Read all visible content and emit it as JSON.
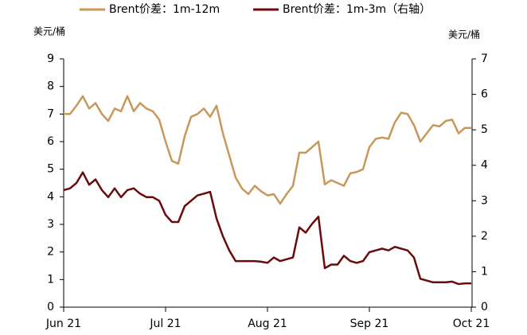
{
  "chart_data": {
    "type": "line",
    "y_label": "美元/桶",
    "y2_label": "美元/桶",
    "categories": [
      "Jun 21",
      null,
      null,
      null,
      null,
      null,
      null,
      null,
      null,
      null,
      null,
      null,
      null,
      null,
      null,
      null,
      "Jul 21",
      null,
      null,
      null,
      null,
      null,
      null,
      null,
      null,
      null,
      null,
      null,
      null,
      null,
      null,
      null,
      "Aug 21",
      null,
      null,
      null,
      null,
      null,
      null,
      null,
      null,
      null,
      null,
      null,
      null,
      null,
      null,
      null,
      "Sep 21",
      null,
      null,
      null,
      null,
      null,
      null,
      null,
      null,
      null,
      null,
      null,
      null,
      null,
      null,
      null,
      "Oct 21"
    ],
    "series": [
      {
        "name": "Brent价差：1m-12m",
        "color": "#c8975a",
        "axis": "y",
        "values": [
          7.0,
          7.0,
          7.3,
          7.65,
          7.2,
          7.4,
          7.0,
          6.75,
          7.2,
          7.1,
          7.65,
          7.1,
          7.4,
          7.2,
          7.1,
          6.8,
          6.0,
          5.3,
          5.2,
          6.2,
          6.9,
          7.0,
          7.2,
          6.9,
          7.3,
          6.3,
          5.5,
          4.7,
          4.3,
          4.1,
          4.4,
          4.2,
          4.05,
          4.1,
          3.75,
          4.1,
          4.4,
          5.6,
          5.6,
          5.8,
          6.0,
          4.45,
          4.6,
          4.5,
          4.4,
          4.85,
          4.9,
          5.0,
          5.8,
          6.1,
          6.15,
          6.1,
          6.7,
          7.05,
          7.0,
          6.6,
          6.0,
          6.3,
          6.6,
          6.55,
          6.75,
          6.8,
          6.3,
          6.5,
          6.5
        ]
      },
      {
        "name": "Brent价差：1m-3m（右轴）",
        "color": "#6b0a0a",
        "axis": "y2",
        "values": [
          3.3,
          3.35,
          3.5,
          3.8,
          3.45,
          3.6,
          3.3,
          3.1,
          3.35,
          3.1,
          3.3,
          3.35,
          3.2,
          3.1,
          3.1,
          3.0,
          2.6,
          2.4,
          2.4,
          2.85,
          3.0,
          3.15,
          3.2,
          3.25,
          2.5,
          2.0,
          1.6,
          1.3,
          1.3,
          1.3,
          1.3,
          1.28,
          1.25,
          1.4,
          1.3,
          1.35,
          1.4,
          2.25,
          2.1,
          2.35,
          2.55,
          1.1,
          1.2,
          1.2,
          1.45,
          1.3,
          1.25,
          1.3,
          1.55,
          1.6,
          1.65,
          1.6,
          1.7,
          1.65,
          1.6,
          1.4,
          0.8,
          0.75,
          0.7,
          0.7,
          0.7,
          0.72,
          0.65,
          0.67,
          0.67
        ]
      }
    ],
    "ylim": [
      0,
      9
    ],
    "yticks": [
      0,
      1,
      2,
      3,
      4,
      5,
      6,
      7,
      8,
      9
    ],
    "y2lim": [
      0,
      7
    ],
    "y2ticks": [
      0,
      1,
      2,
      3,
      4,
      5,
      6,
      7
    ],
    "legend": "top"
  }
}
